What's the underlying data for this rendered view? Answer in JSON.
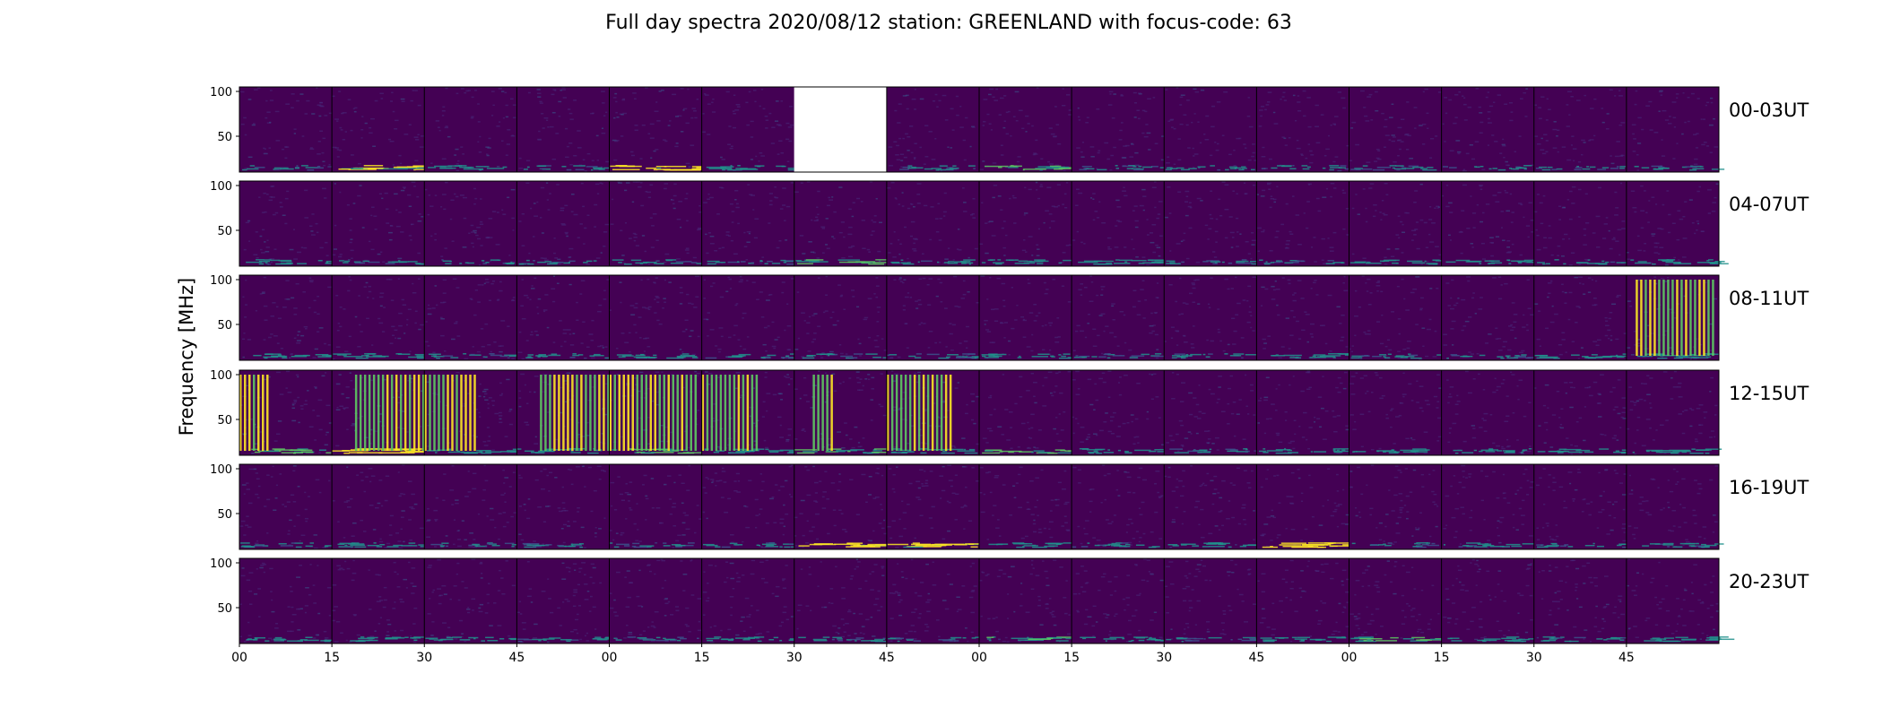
{
  "chart_data": {
    "type": "heatmap",
    "title": "Full day spectra 2020/08/12 station: GREENLAND with focus-code: 63",
    "ylabel": "Frequency [MHz]",
    "xlabel": "",
    "y_ticks": [
      "100",
      "50"
    ],
    "y_tick_values": [
      100,
      50
    ],
    "ylim": [
      10,
      105
    ],
    "x_tick_labels": [
      "00",
      "15",
      "30",
      "45",
      "00",
      "15",
      "30",
      "45",
      "00",
      "15",
      "30",
      "45",
      "00",
      "15",
      "30",
      "45"
    ],
    "panels_per_row": 16,
    "panel_minutes": 15,
    "colormap": [
      "#440154",
      "#3b528b",
      "#21918c",
      "#5ec962",
      "#fde725"
    ],
    "rows": [
      {
        "label": "00-03UT",
        "panels": [
          {
            "i": 0.15,
            "b": 0.35
          },
          {
            "i": 0.2,
            "b": 0.8,
            "bc": "yellow"
          },
          {
            "i": 0.15,
            "b": 0.5
          },
          {
            "i": 0.15,
            "b": 0.3
          },
          {
            "i": 0.25,
            "b": 0.9,
            "bc": "yellow"
          },
          {
            "i": 0.15,
            "b": 0.5
          },
          {
            "missing": true
          },
          {
            "i": 0.15,
            "b": 0.25
          },
          {
            "i": 0.15,
            "b": 0.6
          },
          {
            "i": 0.15,
            "b": 0.25
          },
          {
            "i": 0.12,
            "b": 0.2
          },
          {
            "i": 0.12,
            "b": 0.25
          },
          {
            "i": 0.12,
            "b": 0.35
          },
          {
            "i": 0.12,
            "b": 0.2
          },
          {
            "i": 0.12,
            "b": 0.2
          },
          {
            "i": 0.12,
            "b": 0.3
          }
        ]
      },
      {
        "label": "04-07UT",
        "panels": [
          {
            "i": 0.15,
            "b": 0.4
          },
          {
            "i": 0.25,
            "b": 0.3
          },
          {
            "i": 0.12,
            "b": 0.2
          },
          {
            "i": 0.12,
            "b": 0.25
          },
          {
            "i": 0.12,
            "b": 0.3
          },
          {
            "i": 0.12,
            "b": 0.3
          },
          {
            "i": 0.15,
            "b": 0.6
          },
          {
            "i": 0.12,
            "b": 0.3
          },
          {
            "i": 0.12,
            "b": 0.4
          },
          {
            "i": 0.12,
            "b": 0.5
          },
          {
            "i": 0.12,
            "b": 0.35
          },
          {
            "i": 0.12,
            "b": 0.3
          },
          {
            "i": 0.12,
            "b": 0.4
          },
          {
            "i": 0.12,
            "b": 0.4
          },
          {
            "i": 0.12,
            "b": 0.3
          },
          {
            "i": 0.15,
            "b": 0.5
          }
        ]
      },
      {
        "label": "08-11UT",
        "panels": [
          {
            "i": 0.15,
            "b": 0.4
          },
          {
            "i": 0.12,
            "b": 0.5
          },
          {
            "i": 0.12,
            "b": 0.3
          },
          {
            "i": 0.12,
            "b": 0.3
          },
          {
            "i": 0.12,
            "b": 0.5
          },
          {
            "i": 0.12,
            "b": 0.3
          },
          {
            "i": 0.12,
            "b": 0.3
          },
          {
            "i": 0.12,
            "b": 0.3
          },
          {
            "i": 0.12,
            "b": 0.4
          },
          {
            "i": 0.12,
            "b": 0.35
          },
          {
            "i": 0.12,
            "b": 0.3
          },
          {
            "i": 0.12,
            "b": 0.5
          },
          {
            "i": 0.12,
            "b": 0.3
          },
          {
            "i": 0.12,
            "b": 0.3
          },
          {
            "i": 0.2,
            "b": 0.5
          },
          {
            "i": 0.3,
            "b": 0.5,
            "burst": [
              0.1,
              0.95
            ]
          }
        ]
      },
      {
        "label": "12-15UT",
        "panels": [
          {
            "i": 0.3,
            "b": 0.6,
            "burst": [
              0.0,
              0.3
            ]
          },
          {
            "i": 0.3,
            "b": 0.95,
            "burst": [
              0.25,
              1.0
            ],
            "bc": "yellow"
          },
          {
            "i": 0.3,
            "b": 0.5,
            "burst": [
              0.0,
              0.55
            ]
          },
          {
            "i": 0.2,
            "b": 0.5,
            "burst": [
              0.25,
              1.0
            ]
          },
          {
            "i": 0.3,
            "b": 0.6,
            "burst": [
              0.0,
              0.95
            ]
          },
          {
            "i": 0.3,
            "b": 0.5,
            "burst": [
              0.0,
              0.6
            ]
          },
          {
            "i": 0.3,
            "b": 0.6,
            "burst": [
              0.2,
              0.4
            ]
          },
          {
            "i": 0.3,
            "b": 0.5,
            "burst": [
              0.0,
              0.7
            ]
          },
          {
            "i": 0.12,
            "b": 0.6
          },
          {
            "i": 0.12,
            "b": 0.4
          },
          {
            "i": 0.12,
            "b": 0.35
          },
          {
            "i": 0.12,
            "b": 0.4
          },
          {
            "i": 0.12,
            "b": 0.4
          },
          {
            "i": 0.12,
            "b": 0.4
          },
          {
            "i": 0.12,
            "b": 0.45
          },
          {
            "i": 0.12,
            "b": 0.55
          }
        ]
      },
      {
        "label": "16-19UT",
        "panels": [
          {
            "i": 0.15,
            "b": 0.3
          },
          {
            "i": 0.12,
            "b": 0.4
          },
          {
            "i": 0.12,
            "b": 0.3
          },
          {
            "i": 0.12,
            "b": 0.3
          },
          {
            "i": 0.12,
            "b": 0.35
          },
          {
            "i": 0.12,
            "b": 0.35
          },
          {
            "i": 0.12,
            "b": 0.95,
            "bc": "yellow"
          },
          {
            "i": 0.12,
            "b": 0.9,
            "bc": "yellow"
          },
          {
            "i": 0.12,
            "b": 0.4
          },
          {
            "i": 0.12,
            "b": 0.3
          },
          {
            "i": 0.12,
            "b": 0.45
          },
          {
            "i": 0.12,
            "b": 0.85,
            "bc": "yellow"
          },
          {
            "i": 0.12,
            "b": 0.3
          },
          {
            "i": 0.12,
            "b": 0.35
          },
          {
            "i": 0.12,
            "b": 0.35
          },
          {
            "i": 0.12,
            "b": 0.3
          }
        ]
      },
      {
        "label": "20-23UT",
        "panels": [
          {
            "i": 0.15,
            "b": 0.4
          },
          {
            "i": 0.12,
            "b": 0.5
          },
          {
            "i": 0.12,
            "b": 0.4
          },
          {
            "i": 0.12,
            "b": 0.35
          },
          {
            "i": 0.12,
            "b": 0.35
          },
          {
            "i": 0.12,
            "b": 0.4
          },
          {
            "i": 0.12,
            "b": 0.35
          },
          {
            "i": 0.12,
            "b": 0.3
          },
          {
            "i": 0.12,
            "b": 0.6
          },
          {
            "i": 0.12,
            "b": 0.4
          },
          {
            "i": 0.12,
            "b": 0.35
          },
          {
            "i": 0.12,
            "b": 0.45
          },
          {
            "i": 0.12,
            "b": 0.6
          },
          {
            "i": 0.12,
            "b": 0.45
          },
          {
            "i": 0.12,
            "b": 0.35
          },
          {
            "i": 0.12,
            "b": 0.5
          }
        ]
      }
    ]
  }
}
